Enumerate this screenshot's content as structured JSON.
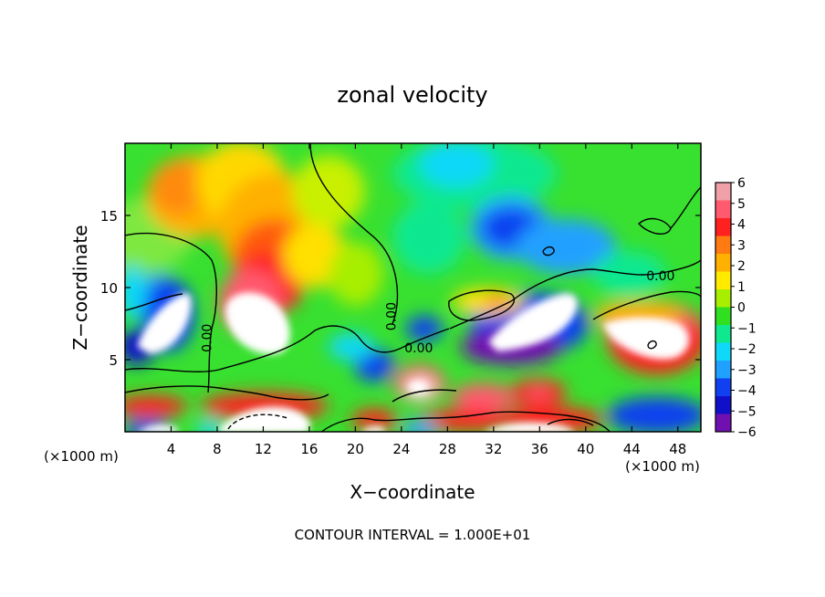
{
  "chart_data": {
    "type": "heatmap",
    "title": "zonal velocity",
    "xlabel": "X−coordinate",
    "ylabel": "Z−coordinate",
    "x_unit": "(×1000 m)",
    "x_unit_right": "(×1000 m)",
    "xlim": [
      0,
      50
    ],
    "ylim": [
      0,
      20
    ],
    "x_ticks": [
      4,
      8,
      12,
      16,
      20,
      24,
      28,
      32,
      36,
      40,
      44,
      48
    ],
    "y_ticks": [
      5,
      10,
      15
    ],
    "colorbar": {
      "min": -6,
      "max": 6,
      "labels": [
        "6",
        "5",
        "4",
        "3",
        "2",
        "1",
        "0",
        "−1",
        "−2",
        "−3",
        "−4",
        "−5",
        "−6"
      ],
      "colors": [
        "#f0a0a8",
        "#ff5a6e",
        "#ff2020",
        "#ff7a10",
        "#ffb000",
        "#ffea00",
        "#a8ee00",
        "#30e020",
        "#10e890",
        "#10d8f8",
        "#20a0ff",
        "#1040f0",
        "#1010c8",
        "#7010b0"
      ]
    },
    "contour_labels": [
      {
        "text": "0.00",
        "x": 7.5,
        "y": 6.5,
        "rotate": -90
      },
      {
        "text": "0.00",
        "x": 23.5,
        "y": 8.0,
        "rotate": -90
      },
      {
        "text": "0.00",
        "x": 25.5,
        "y": 5.5,
        "rotate": 0
      },
      {
        "text": "0.00",
        "x": 46.5,
        "y": 10.5,
        "rotate": 0
      }
    ],
    "footer": "CONTOUR INTERVAL = 1.000E+01"
  }
}
